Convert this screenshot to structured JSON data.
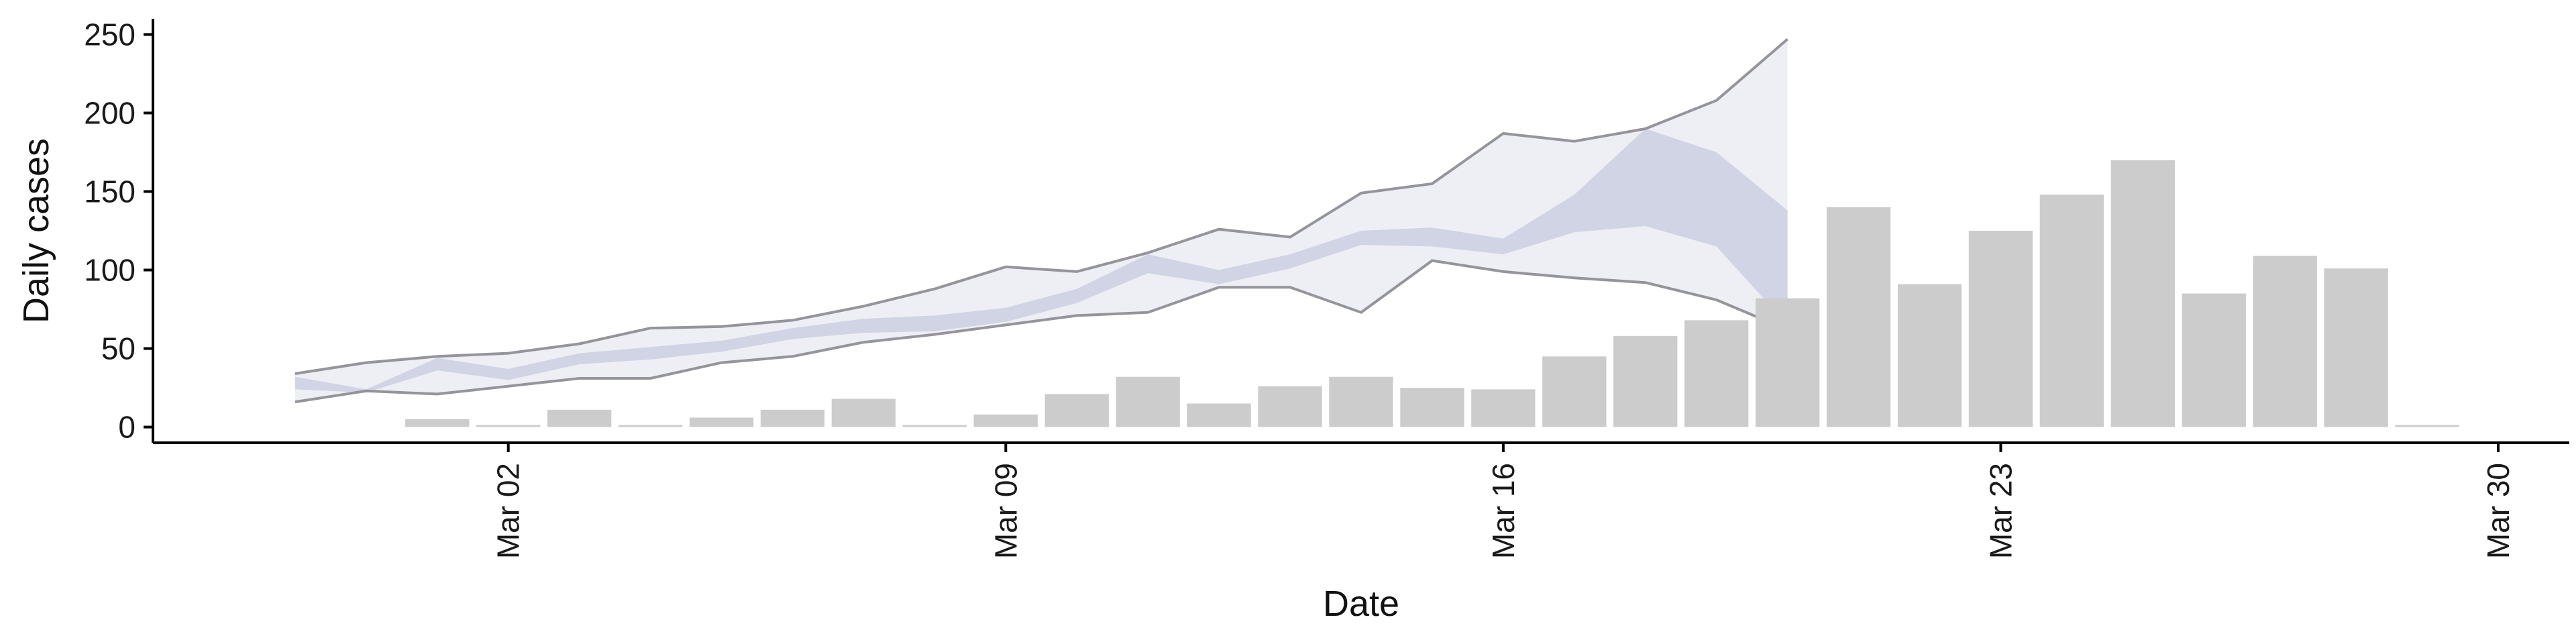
{
  "chart_data": {
    "type": "bar",
    "title": "",
    "xlabel": "Date",
    "ylabel": "Daily cases",
    "ylim": [
      -10,
      260
    ],
    "yticks": [
      0,
      50,
      100,
      150,
      200,
      250
    ],
    "xticks": [
      {
        "date": "2020-03-02",
        "label": "Mar 02"
      },
      {
        "date": "2020-03-09",
        "label": "Mar 09"
      },
      {
        "date": "2020-03-16",
        "label": "Mar 16"
      },
      {
        "date": "2020-03-23",
        "label": "Mar 23"
      },
      {
        "date": "2020-03-30",
        "label": "Mar 30"
      }
    ],
    "xlim": [
      "2020-02-26",
      "2020-03-31"
    ],
    "grid": false,
    "legend": "none",
    "bars": {
      "color": "#cccccc",
      "dates": [
        "2020-03-01",
        "2020-03-02",
        "2020-03-03",
        "2020-03-04",
        "2020-03-05",
        "2020-03-06",
        "2020-03-07",
        "2020-03-08",
        "2020-03-09",
        "2020-03-10",
        "2020-03-11",
        "2020-03-12",
        "2020-03-13",
        "2020-03-14",
        "2020-03-15",
        "2020-03-16",
        "2020-03-17",
        "2020-03-18",
        "2020-03-19",
        "2020-03-20",
        "2020-03-21",
        "2020-03-22",
        "2020-03-23",
        "2020-03-24",
        "2020-03-25",
        "2020-03-26",
        "2020-03-27",
        "2020-03-28",
        "2020-03-29"
      ],
      "values": [
        5,
        0,
        11,
        0,
        6,
        11,
        18,
        1,
        8,
        21,
        32,
        15,
        26,
        32,
        25,
        24,
        45,
        58,
        68,
        82,
        140,
        91,
        125,
        148,
        170,
        85,
        109,
        101,
        0
      ]
    },
    "outer_band": {
      "fill": "#e9ebf3",
      "stroke": "#8a8a90",
      "dates": [
        "2020-02-28",
        "2020-02-29",
        "2020-03-01",
        "2020-03-02",
        "2020-03-03",
        "2020-03-04",
        "2020-03-05",
        "2020-03-06",
        "2020-03-07",
        "2020-03-08",
        "2020-03-09",
        "2020-03-10",
        "2020-03-11",
        "2020-03-12",
        "2020-03-13",
        "2020-03-14",
        "2020-03-15",
        "2020-03-16",
        "2020-03-17",
        "2020-03-18",
        "2020-03-19",
        "2020-03-20"
      ],
      "upper": [
        34,
        41,
        45,
        47,
        53,
        63,
        64,
        68,
        77,
        88,
        102,
        99,
        111,
        126,
        121,
        149,
        155,
        187,
        182,
        190,
        208,
        247
      ],
      "lower": [
        16,
        23,
        21,
        26,
        31,
        31,
        41,
        45,
        54,
        59,
        65,
        71,
        73,
        89,
        89,
        73,
        106,
        99,
        95,
        92,
        81,
        62
      ]
    },
    "inner_band": {
      "fill": "#c9cde0",
      "dates": [
        "2020-02-28",
        "2020-02-29",
        "2020-03-01",
        "2020-03-02",
        "2020-03-03",
        "2020-03-04",
        "2020-03-05",
        "2020-03-06",
        "2020-03-07",
        "2020-03-08",
        "2020-03-09",
        "2020-03-10",
        "2020-03-11",
        "2020-03-12",
        "2020-03-13",
        "2020-03-14",
        "2020-03-15",
        "2020-03-16",
        "2020-03-17",
        "2020-03-18",
        "2020-03-19",
        "2020-03-20"
      ],
      "upper": [
        32,
        24,
        44,
        37,
        47,
        51,
        55,
        63,
        69,
        71,
        76,
        88,
        110,
        100,
        110,
        125,
        127,
        120,
        148,
        190,
        175,
        138
      ],
      "lower": [
        24,
        22,
        36,
        30,
        40,
        43,
        48,
        56,
        60,
        61,
        67,
        79,
        98,
        91,
        101,
        116,
        115,
        110,
        124,
        128,
        115,
        65
      ]
    }
  }
}
